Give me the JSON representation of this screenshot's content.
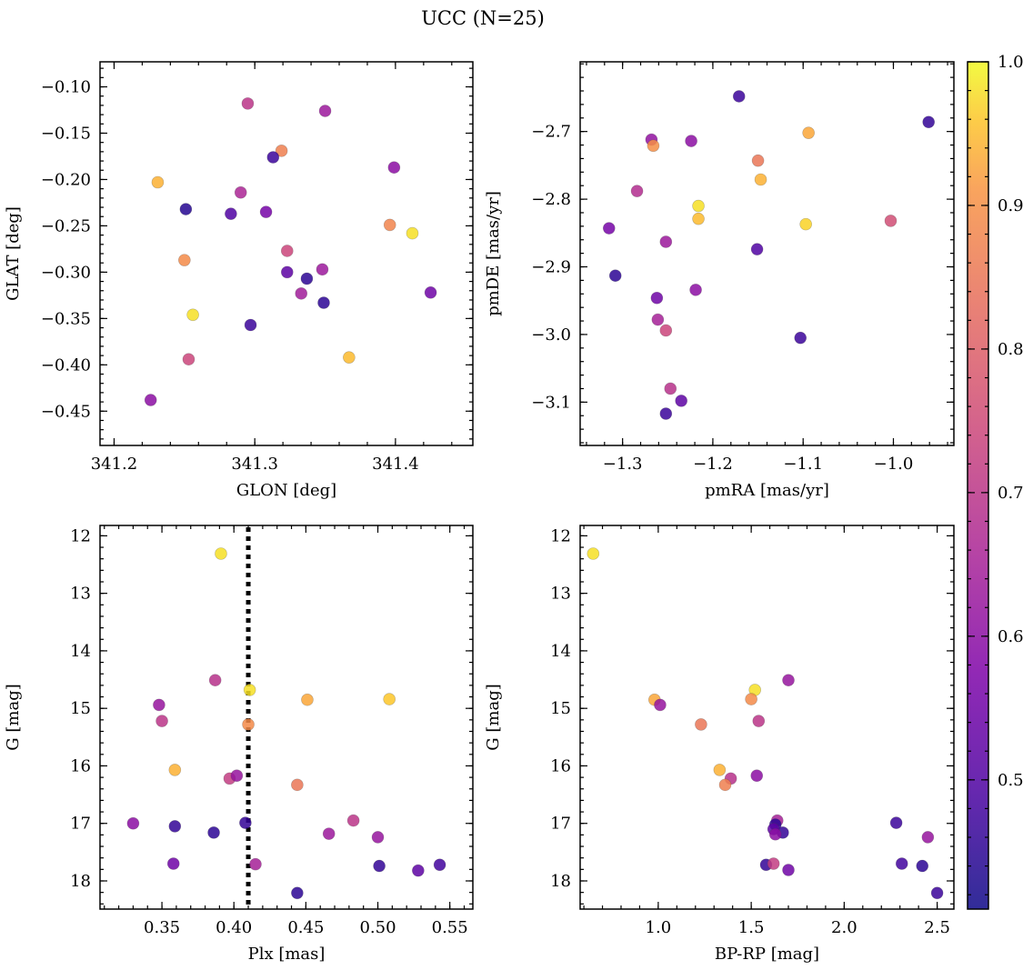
{
  "figure": {
    "title": "UCC (N=25)"
  },
  "colorbar": {
    "colormap": "plasma",
    "range": [
      0.41,
      1.0
    ],
    "ticks": [
      0.5,
      0.6,
      0.7,
      0.8,
      0.9,
      1.0
    ],
    "tick_labels": [
      "0.5",
      "0.6",
      "0.7",
      "0.8",
      "0.9",
      "1.0"
    ]
  },
  "chart_data": [
    {
      "type": "scatter",
      "title": "",
      "xlabel": "GLON [deg]",
      "ylabel": "GLAT [deg]",
      "xlim": [
        341.19,
        341.455
      ],
      "ylim": [
        -0.487,
        -0.073
      ],
      "y_inverted": false,
      "xticks": [
        341.2,
        341.3,
        341.4
      ],
      "xtick_labels": [
        "341.2",
        "341.3",
        "341.4"
      ],
      "yticks": [
        -0.45,
        -0.4,
        -0.35,
        -0.3,
        -0.25,
        -0.2,
        -0.15,
        -0.1
      ],
      "ytick_labels": [
        "−0.45",
        "−0.40",
        "−0.35",
        "−0.30",
        "−0.25",
        "−0.20",
        "−0.15",
        "−0.10"
      ],
      "x": [
        341.295,
        341.35,
        341.319,
        341.313,
        341.231,
        341.399,
        341.29,
        341.251,
        341.283,
        341.308,
        341.396,
        341.412,
        341.323,
        341.25,
        341.323,
        341.348,
        341.337,
        341.333,
        341.425,
        341.349,
        341.256,
        341.297,
        341.367,
        341.253,
        341.226
      ],
      "y": [
        -0.118,
        -0.126,
        -0.169,
        -0.176,
        -0.203,
        -0.187,
        -0.214,
        -0.232,
        -0.237,
        -0.235,
        -0.249,
        -0.258,
        -0.277,
        -0.287,
        -0.3,
        -0.297,
        -0.307,
        -0.323,
        -0.322,
        -0.333,
        -0.346,
        -0.357,
        -0.392,
        -0.394,
        -0.438
      ],
      "color_values": [
        0.7,
        0.63,
        0.87,
        0.47,
        0.94,
        0.6,
        0.66,
        0.44,
        0.5,
        0.56,
        0.88,
        0.98,
        0.74,
        0.89,
        0.52,
        0.63,
        0.45,
        0.64,
        0.55,
        0.45,
        0.98,
        0.47,
        0.95,
        0.74,
        0.6
      ]
    },
    {
      "type": "scatter",
      "title": "",
      "xlabel": "pmRA [mas/yr]",
      "ylabel": "pmDE [mas/yr]",
      "xlim": [
        -1.347,
        -0.933
      ],
      "ylim": [
        -3.164,
        -2.597
      ],
      "y_inverted": false,
      "xticks": [
        -1.3,
        -1.2,
        -1.1,
        -1.0
      ],
      "xtick_labels": [
        "−1.3",
        "−1.2",
        "−1.1",
        "−1.0"
      ],
      "yticks": [
        -3.1,
        -3.0,
        -2.9,
        -2.8,
        -2.7
      ],
      "ytick_labels": [
        "−3.1",
        "−3.0",
        "−2.9",
        "−2.8",
        "−2.7"
      ],
      "x": [
        -1.171,
        -0.961,
        -1.268,
        -1.266,
        -1.224,
        -1.094,
        -1.15,
        -1.147,
        -1.284,
        -1.216,
        -1.216,
        -1.097,
        -1.003,
        -1.315,
        -1.252,
        -1.151,
        -1.308,
        -1.262,
        -1.219,
        -1.261,
        -1.252,
        -1.103,
        -1.247,
        -1.235,
        -1.252
      ],
      "y": [
        -2.648,
        -2.686,
        -2.712,
        -2.721,
        -2.714,
        -2.702,
        -2.743,
        -2.771,
        -2.788,
        -2.81,
        -2.829,
        -2.837,
        -2.832,
        -2.843,
        -2.863,
        -2.874,
        -2.913,
        -2.946,
        -2.934,
        -2.978,
        -2.994,
        -3.005,
        -3.08,
        -3.098,
        -3.117
      ],
      "color_values": [
        0.47,
        0.46,
        0.61,
        0.9,
        0.6,
        0.93,
        0.85,
        0.94,
        0.68,
        0.98,
        0.95,
        0.97,
        0.76,
        0.56,
        0.63,
        0.5,
        0.45,
        0.55,
        0.6,
        0.65,
        0.74,
        0.47,
        0.69,
        0.52,
        0.47
      ]
    },
    {
      "type": "scatter",
      "title": "",
      "xlabel": "Plx [mas]",
      "ylabel": "G [mag]",
      "xlim": [
        0.307,
        0.566
      ],
      "ylim": [
        18.49,
        11.82
      ],
      "y_inverted": true,
      "xticks": [
        0.35,
        0.4,
        0.45,
        0.5,
        0.55
      ],
      "xtick_labels": [
        "0.35",
        "0.40",
        "0.45",
        "0.50",
        "0.55"
      ],
      "yticks": [
        12,
        13,
        14,
        15,
        16,
        17,
        18
      ],
      "ytick_labels": [
        "12",
        "13",
        "14",
        "15",
        "16",
        "17",
        "18"
      ],
      "vline": {
        "x": 0.41,
        "style": "dotted",
        "color": "#000000"
      },
      "x": [
        0.391,
        0.387,
        0.411,
        0.451,
        0.508,
        0.348,
        0.35,
        0.41,
        0.359,
        0.397,
        0.402,
        0.444,
        0.33,
        0.359,
        0.386,
        0.408,
        0.483,
        0.466,
        0.5,
        0.358,
        0.415,
        0.501,
        0.528,
        0.543,
        0.444
      ],
      "y": [
        12.31,
        14.51,
        14.68,
        14.85,
        14.84,
        14.94,
        15.22,
        15.28,
        16.07,
        16.22,
        16.17,
        16.33,
        17.0,
        17.05,
        17.16,
        16.99,
        16.95,
        17.18,
        17.24,
        17.7,
        17.71,
        17.74,
        17.82,
        17.72,
        18.21
      ],
      "color_values": [
        0.98,
        0.69,
        0.98,
        0.93,
        0.96,
        0.62,
        0.7,
        0.89,
        0.94,
        0.72,
        0.62,
        0.85,
        0.6,
        0.46,
        0.45,
        0.46,
        0.7,
        0.63,
        0.62,
        0.55,
        0.65,
        0.46,
        0.52,
        0.48,
        0.45
      ]
    },
    {
      "type": "scatter",
      "title": "",
      "xlabel": "BP-RP [mag]",
      "ylabel": "G [mag]",
      "xlim": [
        0.58,
        2.59
      ],
      "ylim": [
        18.49,
        11.82
      ],
      "y_inverted": true,
      "xticks": [
        1.0,
        1.5,
        2.0,
        2.5
      ],
      "xtick_labels": [
        "1.0",
        "1.5",
        "2.0",
        "2.5"
      ],
      "yticks": [
        12,
        13,
        14,
        15,
        16,
        17,
        18
      ],
      "ytick_labels": [
        "12",
        "13",
        "14",
        "15",
        "16",
        "17",
        "18"
      ],
      "x": [
        0.65,
        1.7,
        1.52,
        0.98,
        1.01,
        1.5,
        1.54,
        1.23,
        1.33,
        1.39,
        1.53,
        1.36,
        1.64,
        1.63,
        1.67,
        1.62,
        2.28,
        1.63,
        2.45,
        1.58,
        1.62,
        2.31,
        2.42,
        1.7,
        2.5
      ],
      "y": [
        12.31,
        14.51,
        14.68,
        14.85,
        14.94,
        14.84,
        15.22,
        15.28,
        16.07,
        16.22,
        16.17,
        16.33,
        16.95,
        17.02,
        17.16,
        17.1,
        16.99,
        17.19,
        17.24,
        17.72,
        17.7,
        17.7,
        17.74,
        17.81,
        18.21
      ],
      "color_values": [
        0.98,
        0.62,
        0.98,
        0.93,
        0.62,
        0.89,
        0.7,
        0.85,
        0.94,
        0.69,
        0.6,
        0.87,
        0.65,
        0.45,
        0.46,
        0.52,
        0.47,
        0.6,
        0.62,
        0.46,
        0.72,
        0.48,
        0.45,
        0.55,
        0.47
      ]
    }
  ]
}
